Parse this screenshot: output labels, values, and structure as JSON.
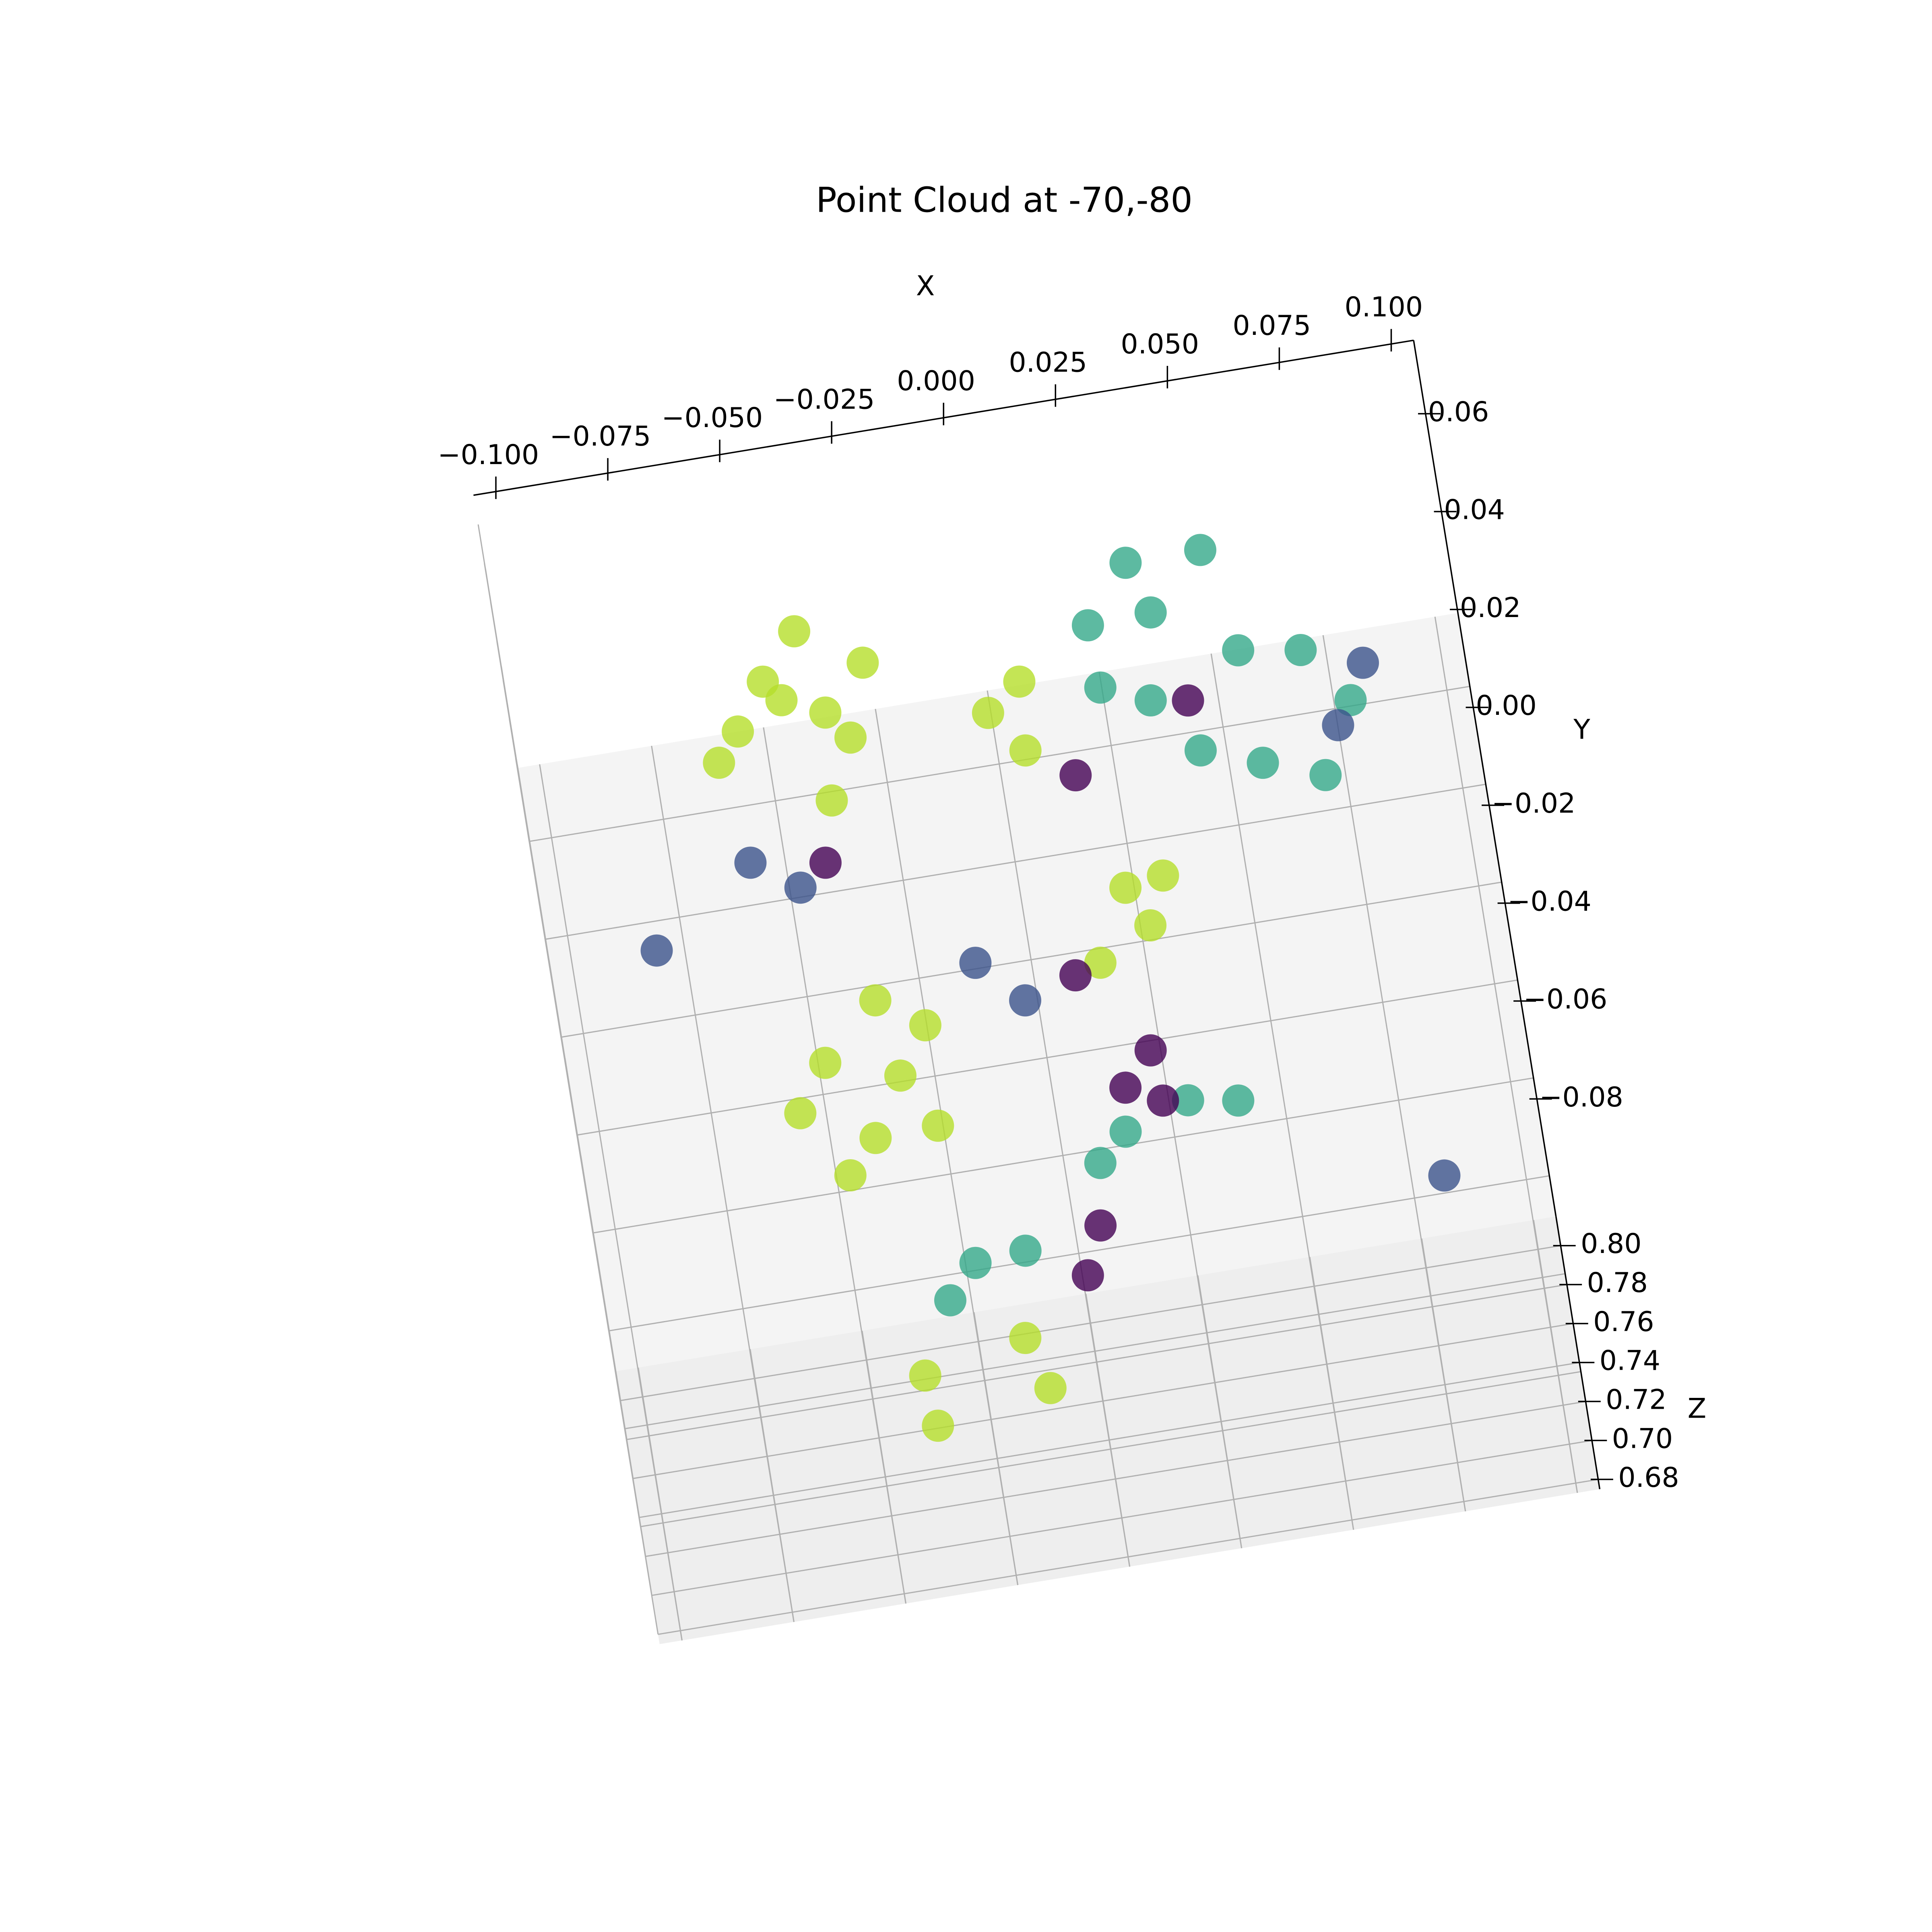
{
  "chart_data": {
    "type": "scatter3d",
    "title": "Point Cloud at  -70,-80",
    "x_label": "X",
    "y_label": "Y",
    "z_label": "Z",
    "xlim": [
      -0.105,
      0.105
    ],
    "ylim": [
      -0.104,
      0.075
    ],
    "zlim": [
      0.675,
      0.815
    ],
    "xticks": [
      {
        "value": -0.1,
        "label": "−0.100"
      },
      {
        "value": -0.075,
        "label": "−0.075"
      },
      {
        "value": -0.05,
        "label": "−0.050"
      },
      {
        "value": -0.025,
        "label": "−0.025"
      },
      {
        "value": 0,
        "label": "0.000"
      },
      0.025,
      {
        "value": 0.05,
        "label": "0.050"
      },
      0.075,
      {
        "value": 0.1,
        "label": "0.100"
      }
    ],
    "yticks": [
      {
        "value": -0.08,
        "label": "−0.08"
      },
      {
        "value": -0.06,
        "label": "−0.06"
      },
      {
        "value": -0.04,
        "label": "−0.04"
      },
      {
        "value": -0.02,
        "label": "−0.02"
      },
      {
        "value": 0,
        "label": "0.00"
      },
      0.02,
      0.04,
      0.06
    ],
    "zticks": [
      0.68,
      {
        "value": 0.7,
        "label": "0.70"
      },
      0.72,
      0.74,
      0.76,
      0.78,
      {
        "value": 0.8,
        "label": "0.80"
      }
    ],
    "grid": true,
    "series": [
      {
        "color": "#b5de2b",
        "z_level": 0.76,
        "x": [
          -0.04,
          -0.0486,
          -0.0558,
          -0.061,
          -0.0452,
          -0.0361,
          -0.0262,
          -0.0315,
          -0.0378,
          -0.0354,
          -0.0254,
          -0.0485,
          -0.0326,
          -0.0557,
          -0.0402,
          -0.0262,
          -0.047,
          -0.0007,
          0.0072,
          0.0061,
          0.023,
          0.0271,
          0.0149,
          0.0316,
          -0.0147,
          -0.011,
          -0.0378,
          -0.0368
        ],
        "y": [
          0.0593,
          0.0503,
          0.0412,
          0.0356,
          0.046,
          0.0421,
          0.0508,
          0.0363,
          0.0244,
          -0.0168,
          -0.0234,
          -0.0276,
          -0.0326,
          -0.0368,
          -0.0442,
          -0.0438,
          -0.0508,
          0.0367,
          0.0419,
          0.028,
          -0.0026,
          -0.0109,
          -0.0167,
          -0.0014,
          -0.0889,
          -0.0997,
          -0.0931,
          -0.1035
        ]
      },
      {
        "color": "#35a98a",
        "z_level": 0.78,
        "x": [
          0.0345,
          0.0512,
          0.0241,
          0.0382,
          0.0246,
          0.0351,
          0.0559,
          0.0695,
          0.0786,
          0.0442,
          0.0573,
          0.0705,
          0.0144,
          0.0291,
          0.04,
          0.0078,
          -0.0229,
          -0.0116,
          -0.0297
        ],
        "y": [
          0.0541,
          0.0542,
          0.0429,
          0.0434,
          0.0301,
          0.0259,
          0.033,
          0.031,
          0.0194,
          0.0143,
          0.0098,
          0.0053,
          -0.0591,
          -0.0549,
          -0.0566,
          -0.0645,
          -0.0803,
          -0.0795,
          -0.0869
        ]
      },
      {
        "color": "#440154",
        "z_level": 0.8,
        "x": [
          0.0161,
          0.0227,
          0.0236,
          0.0159,
          0.0056,
          0.0011,
          0.0432,
          0.009,
          -0.0414
        ],
        "y": [
          0.0055,
          -0.0517,
          -0.0621,
          -0.0583,
          -0.0849,
          -0.0944,
          0.0167,
          -0.0343,
          -0.0037
        ]
      },
      {
        "color": "#3b528b",
        "z_level": 0.77,
        "x": [
          -0.0812,
          0.0826,
          0.0822,
          -0.0577,
          -0.0477,
          -0.0123,
          -0.0028,
          0.075
        ],
        "y": [
          -0.0037,
          0.0304,
          -0.0743,
          0.0107,
          0.0041,
          -0.0166,
          -0.0257,
          0.0188
        ]
      }
    ]
  }
}
